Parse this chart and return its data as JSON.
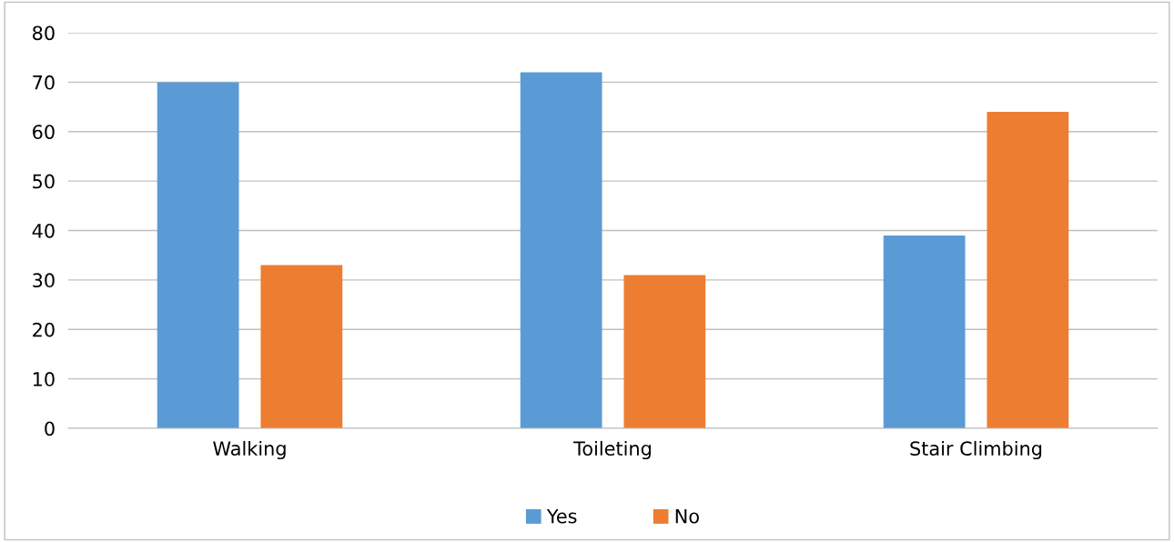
{
  "chart_data": {
    "type": "bar",
    "categories": [
      "Walking",
      "Toileting",
      "Stair Climbing"
    ],
    "series": [
      {
        "name": "Yes",
        "color": "#5b9bd5",
        "values": [
          70,
          72,
          39
        ]
      },
      {
        "name": "No",
        "color": "#ed7d31",
        "values": [
          33,
          31,
          64
        ]
      }
    ],
    "ylim": [
      0,
      80
    ],
    "yticks": [
      0,
      10,
      20,
      30,
      40,
      50,
      60,
      70,
      80
    ],
    "grid": "y",
    "legend": "bottom"
  }
}
